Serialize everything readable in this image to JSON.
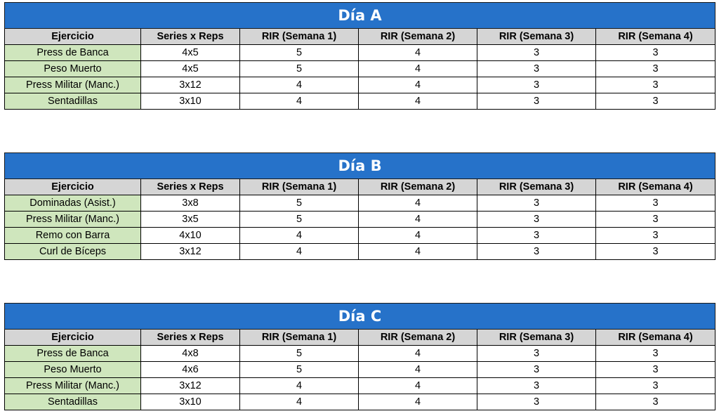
{
  "columns": [
    "Ejercicio",
    "Series x Reps",
    "RIR (Semana 1)",
    "RIR (Semana 2)",
    "RIR (Semana 3)",
    "RIR (Semana 4)"
  ],
  "colors": {
    "title_bg": "#2672c9",
    "header_bg": "#d5d5d5",
    "exercise_bg": "#cfe6bd"
  },
  "days": [
    {
      "title": "Día A",
      "rows": [
        [
          "Press de Banca",
          "4x5",
          "5",
          "4",
          "3",
          "3"
        ],
        [
          "Peso Muerto",
          "4x5",
          "5",
          "4",
          "3",
          "3"
        ],
        [
          "Press Militar (Manc.)",
          "3x12",
          "4",
          "4",
          "3",
          "3"
        ],
        [
          "Sentadillas",
          "3x10",
          "4",
          "4",
          "3",
          "3"
        ]
      ]
    },
    {
      "title": "Día B",
      "rows": [
        [
          "Dominadas (Asist.)",
          "3x8",
          "5",
          "4",
          "3",
          "3"
        ],
        [
          "Press Militar (Manc.)",
          "3x5",
          "5",
          "4",
          "3",
          "3"
        ],
        [
          "Remo con Barra",
          "4x10",
          "4",
          "4",
          "3",
          "3"
        ],
        [
          "Curl de Bíceps",
          "3x12",
          "4",
          "4",
          "3",
          "3"
        ]
      ]
    },
    {
      "title": "Día C",
      "rows": [
        [
          "Press de Banca",
          "4x8",
          "5",
          "4",
          "3",
          "3"
        ],
        [
          "Peso Muerto",
          "4x6",
          "5",
          "4",
          "3",
          "3"
        ],
        [
          "Press Militar (Manc.)",
          "3x12",
          "4",
          "4",
          "3",
          "3"
        ],
        [
          "Sentadillas",
          "3x10",
          "4",
          "4",
          "3",
          "3"
        ]
      ]
    }
  ]
}
